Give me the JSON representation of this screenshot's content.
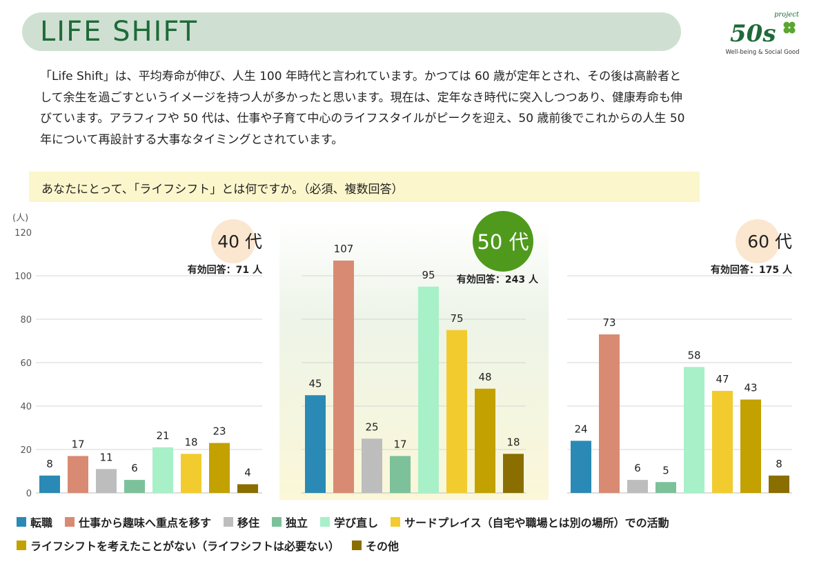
{
  "header": {
    "title": "LIFE SHIFT",
    "logo": {
      "project": "project",
      "mark": "50s",
      "tagline": "Well-being & Social Good"
    }
  },
  "intro": {
    "lines": [
      "「Life Shift」は、平均寿命が伸び、人生 100 年時代と言われています。かつては 60 歳が定年とされ、その後は高齢者と",
      "して余生を過ごすというイメージを持つ人が多かったと思います。現在は、定年なき時代に突入しつつあり、健康寿命も伸",
      "びています。アラフィフや 50 代は、仕事や子育て中心のライフスタイルがピークを迎え、50 歳前後でこれからの人生 50",
      "年について再設計する大事なタイミングとされています。"
    ]
  },
  "question": "あなたにとって、「ライフシフト」とは何ですか。（必須、複数回答）",
  "colors": [
    "#2a8ab5",
    "#d98a72",
    "#bdbdbd",
    "#7cc19a",
    "#a8f0c8",
    "#f2cc2e",
    "#c2a100",
    "#8a6e00"
  ],
  "chart_data": {
    "type": "bar",
    "unit_label": "(人)",
    "ylim": [
      0,
      120
    ],
    "yticks": [
      "0",
      "20",
      "40",
      "60",
      "80",
      "100",
      "120"
    ],
    "categories": [
      "転職",
      "仕事から趣味へ重点を移す",
      "移住",
      "独立",
      "学び直し",
      "サードプレイス（自宅や職場とは別の場所）での活動",
      "ライフシフトを考えたことがない（ライフシフトは必要ない）",
      "その他"
    ],
    "groups": [
      {
        "name": "40 代",
        "responses": "有効回答：71 人",
        "values": [
          8,
          17,
          11,
          6,
          21,
          18,
          23,
          4
        ],
        "labels": [
          "8",
          "17",
          "11",
          "6",
          "21",
          "18",
          "23",
          "4"
        ]
      },
      {
        "name": "50 代",
        "responses": "有効回答：243 人",
        "values": [
          45,
          107,
          25,
          17,
          95,
          75,
          48,
          18
        ],
        "labels": [
          "45",
          "107",
          "25",
          "17",
          "95",
          "75",
          "48",
          "18"
        ]
      },
      {
        "name": "60 代",
        "responses": "有効回答：175 人",
        "values": [
          24,
          73,
          6,
          5,
          58,
          47,
          43,
          8
        ],
        "labels": [
          "24",
          "73",
          "6",
          "5",
          "58",
          "47",
          "43",
          "8"
        ]
      }
    ]
  }
}
